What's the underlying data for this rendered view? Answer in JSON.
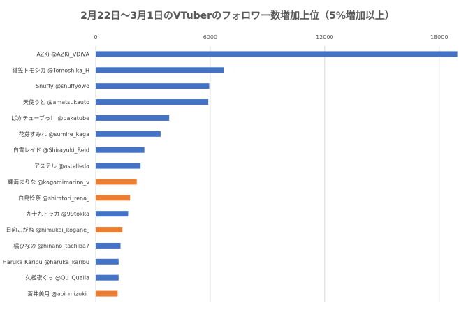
{
  "chart_data": {
    "type": "bar",
    "orientation": "horizontal",
    "title": "2月22日〜3月1日のVTuberのフォロワー数増加上位（5%増加以上）",
    "xlabel": "",
    "ylabel": "",
    "xlim": [
      0,
      19000
    ],
    "xticks": [
      "0",
      "6000",
      "12000",
      "18000"
    ],
    "xtick_values": [
      0,
      6000,
      12000,
      18000
    ],
    "grid": true,
    "legend": "none",
    "colors": {
      "blue": "#4472c4",
      "orange": "#ed7d31"
    },
    "categories": [
      "AZKi @AZKi_VDiVA",
      "緋笠トモシカ @Tomoshika_H",
      "Snuffy @snuffyowo",
      "天使うと @amatsukauto",
      "ぱかチューブっ！ @pakatube",
      "花芽すみれ @sumire_kaga",
      "白雪レイド @Shirayuki_Reid",
      "アステル @astelleda",
      "輝海まりな @kagamimarina_v",
      "白鳥怜奈 @shiratori_rena_",
      "九十九トッカ @99tokka",
      "日向こがね @himukai_kogane_",
      "橘ひなの @hinano_tachiba7",
      "Haruka Karibu @haruka_karibu",
      "久檻夜くぅ @Qu_Qualia",
      "蒼井美月 @aoi_mizuki_"
    ],
    "values": [
      18950,
      6700,
      5950,
      5900,
      3850,
      3400,
      2550,
      2350,
      2150,
      1800,
      1700,
      1400,
      1300,
      1200,
      1200,
      1150
    ],
    "bar_colors": [
      "blue",
      "blue",
      "blue",
      "blue",
      "blue",
      "blue",
      "blue",
      "blue",
      "orange",
      "orange",
      "blue",
      "orange",
      "blue",
      "blue",
      "blue",
      "orange"
    ]
  }
}
